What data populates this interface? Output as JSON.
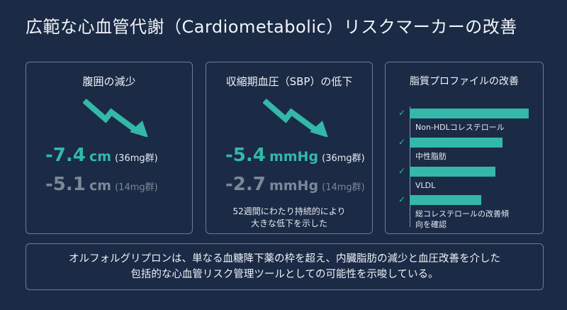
{
  "title": "広範な心血管代謝（Cardiometabolic）リスクマーカーの改善",
  "colors": {
    "accent": "#33b8a9",
    "muted": "#7b8898",
    "background": "#1b2a45"
  },
  "cards": [
    {
      "title": "腹囲の減少",
      "icon": "trend-down-arrow-icon",
      "primary": {
        "value": "-7.4",
        "unit": "cm",
        "group": "(36mg群)"
      },
      "secondary": {
        "value": "-5.1",
        "unit": "cm",
        "group": "(14mg群)"
      }
    },
    {
      "title": "収縮期血圧（SBP）の低下",
      "icon": "trend-down-arrow-icon",
      "primary": {
        "value": "-5.4",
        "unit": "mmHg",
        "group": "(36mg群)"
      },
      "secondary": {
        "value": "-2.7",
        "unit": "mmHg",
        "group": "(14mg群)"
      },
      "note_line1": "52週間にわたり持続的により",
      "note_line2": "大きな低下を示した"
    },
    {
      "title": "脂質プロファイルの改善",
      "items": [
        {
          "label": "Non-HDLコレステロール",
          "check": "✓",
          "level": 1.0
        },
        {
          "label": "中性脂肪",
          "check": "✓",
          "level": 0.78
        },
        {
          "label": "VLDL",
          "check": "✓",
          "level": 0.72
        },
        {
          "label_line1": "総コレステロールの改善傾",
          "label_line2": "向を確認",
          "check": "✓",
          "level": 0.6
        }
      ]
    }
  ],
  "footer": {
    "line1": "オルフォルグリプロンは、単なる血糖降下薬の枠を超え、内臓脂肪の減少と血圧改善を介した",
    "line2": "包括的な心血管リスク管理ツールとしての可能性を示唆している。"
  }
}
